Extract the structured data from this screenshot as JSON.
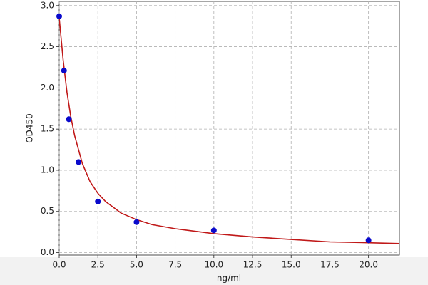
{
  "chart_data": {
    "type": "scatter",
    "x_label": "ng/ml",
    "y_label": "OD450",
    "xlim": [
      0,
      22
    ],
    "ylim": [
      -0.03,
      3.05
    ],
    "xticks": [
      {
        "value": 0,
        "label": "0.0"
      },
      2.5,
      {
        "value": 5,
        "label": "5.0"
      },
      7.5,
      {
        "value": 10,
        "label": "10.0"
      },
      12.5,
      {
        "value": 15,
        "label": "15.0"
      },
      17.5,
      {
        "value": 20,
        "label": "20.0"
      }
    ],
    "yticks": [
      {
        "value": 0,
        "label": "0.0"
      },
      0.5,
      {
        "value": 1,
        "label": "1.0"
      },
      1.5,
      {
        "value": 2,
        "label": "2.0"
      },
      2.5,
      {
        "value": 3,
        "label": "3.0"
      }
    ],
    "grid": true,
    "series": [
      {
        "type": "line",
        "color": "#c01818",
        "x": [
          0,
          0.25,
          0.5,
          0.75,
          1,
          1.5,
          2,
          2.5,
          3,
          4,
          5,
          6,
          7.5,
          10,
          12.5,
          15,
          17.5,
          20,
          22
        ],
        "values": [
          2.85,
          2.35,
          1.95,
          1.65,
          1.42,
          1.08,
          0.86,
          0.72,
          0.62,
          0.48,
          0.4,
          0.34,
          0.29,
          0.23,
          0.19,
          0.16,
          0.13,
          0.12,
          0.11
        ]
      },
      {
        "type": "scatter",
        "color": "#0a0acc",
        "x": [
          0,
          0.3125,
          0.625,
          1.25,
          2.5,
          5,
          10,
          20
        ],
        "values": [
          2.87,
          2.21,
          1.62,
          1.1,
          0.62,
          0.37,
          0.27,
          0.15
        ]
      }
    ]
  }
}
